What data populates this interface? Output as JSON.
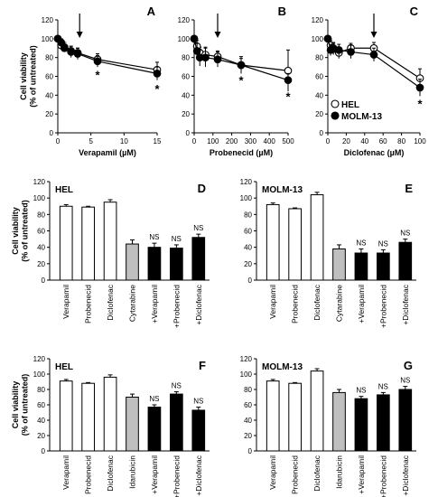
{
  "colors": {
    "ink": "#000000",
    "white": "#ffffff",
    "gray": "#bfbfbf",
    "black": "#000000"
  },
  "chart_data": [
    {
      "id": "A",
      "type": "line",
      "panel_label": "A",
      "xlabel": "Verapamil (µM)",
      "ylabel": [
        "Cell viability",
        "(% of untreated)"
      ],
      "xlim": [
        0,
        15
      ],
      "ylim": [
        0,
        120
      ],
      "xticks": [
        0,
        5,
        10,
        15
      ],
      "yticks": [
        0,
        20,
        40,
        60,
        80,
        100,
        120
      ],
      "arrow_x": 3.3,
      "series": [
        {
          "name": "HEL",
          "marker": "open",
          "x": [
            0,
            0.5,
            1,
            2,
            3,
            6,
            15
          ],
          "y": [
            100,
            93,
            90,
            87,
            85,
            78,
            67
          ],
          "err": [
            3,
            4,
            4,
            5,
            5,
            6,
            8
          ]
        },
        {
          "name": "MOLM-13",
          "marker": "filled",
          "x": [
            0,
            0.5,
            1,
            2,
            3,
            6,
            15
          ],
          "y": [
            100,
            96,
            91,
            86,
            84,
            76,
            63
          ],
          "err": [
            3,
            4,
            5,
            6,
            6,
            6,
            7
          ]
        }
      ],
      "stars": [
        {
          "x": 6,
          "y": 63,
          "text": "*"
        },
        {
          "x": 15,
          "y": 48,
          "text": "*"
        }
      ]
    },
    {
      "id": "B",
      "type": "line",
      "panel_label": "B",
      "xlabel": "Probenecid (µM)",
      "ylabel": [],
      "xlim": [
        0,
        500
      ],
      "ylim": [
        0,
        120
      ],
      "xticks": [
        0,
        100,
        200,
        300,
        400,
        500
      ],
      "yticks": [
        0,
        20,
        40,
        60,
        80,
        100,
        120
      ],
      "arrow_x": 125,
      "series": [
        {
          "name": "HEL",
          "marker": "open",
          "x": [
            0,
            15,
            30,
            60,
            125,
            250,
            500
          ],
          "y": [
            100,
            92,
            85,
            83,
            81,
            72,
            66
          ],
          "err": [
            3,
            6,
            6,
            8,
            6,
            7,
            22
          ]
        },
        {
          "name": "MOLM-13",
          "marker": "filled",
          "x": [
            0,
            15,
            30,
            60,
            125,
            250,
            500
          ],
          "y": [
            100,
            87,
            80,
            80,
            78,
            72,
            56
          ],
          "err": [
            3,
            8,
            9,
            10,
            8,
            9,
            7
          ]
        }
      ],
      "stars": [
        {
          "x": 250,
          "y": 57,
          "text": "*"
        },
        {
          "x": 500,
          "y": 40,
          "text": "*"
        }
      ]
    },
    {
      "id": "C",
      "type": "line",
      "panel_label": "C",
      "xlabel": "Diclofenac (µM)",
      "ylabel": [],
      "xlim": [
        0,
        100
      ],
      "ylim": [
        0,
        120
      ],
      "xticks": [
        0,
        20,
        40,
        60,
        80,
        100
      ],
      "yticks": [
        0,
        20,
        40,
        60,
        80,
        100,
        120
      ],
      "arrow_x": 50,
      "legend": {
        "position": "bottom-left",
        "entries": [
          "HEL",
          "MOLM-13"
        ]
      },
      "series": [
        {
          "name": "HEL",
          "marker": "open",
          "x": [
            0,
            3,
            6,
            12,
            25,
            50,
            100
          ],
          "y": [
            100,
            93,
            90,
            85,
            90,
            90,
            58
          ],
          "err": [
            3,
            5,
            6,
            6,
            5,
            6,
            10
          ]
        },
        {
          "name": "MOLM-13",
          "marker": "filled",
          "x": [
            0,
            3,
            6,
            12,
            25,
            50,
            100
          ],
          "y": [
            100,
            88,
            89,
            88,
            86,
            83,
            48
          ],
          "err": [
            3,
            6,
            6,
            6,
            7,
            7,
            9
          ]
        }
      ],
      "stars": [
        {
          "x": 100,
          "y": 32,
          "text": "*"
        }
      ]
    },
    {
      "id": "D",
      "type": "bar",
      "panel_label": "D",
      "title": "HEL",
      "ylabel": [
        "Cell viability",
        "(% of untreated)"
      ],
      "ylim": [
        0,
        120
      ],
      "yticks": [
        0,
        20,
        40,
        60,
        80,
        100,
        120
      ],
      "categories": [
        "Verapamil",
        "Probenecid",
        "Diclofenac",
        "Cytarabine",
        "+Verapamil",
        "+Probenecid",
        "+Diclofenac"
      ],
      "values": [
        90,
        89,
        95,
        44,
        40,
        39,
        52
      ],
      "errors": [
        2,
        1,
        3,
        5,
        5,
        4,
        4
      ],
      "fills": [
        "white",
        "white",
        "white",
        "gray",
        "black",
        "black",
        "black"
      ],
      "labels": [
        "",
        "",
        "",
        "",
        "NS",
        "NS",
        "NS"
      ]
    },
    {
      "id": "E",
      "type": "bar",
      "panel_label": "E",
      "title": "MOLM-13",
      "ylabel": [],
      "ylim": [
        0,
        120
      ],
      "yticks": [
        0,
        20,
        40,
        60,
        80,
        100,
        120
      ],
      "categories": [
        "Verapamil",
        "Probenecid",
        "Diclofenac",
        "Cytarabine",
        "+Verapamil",
        "+Probenecid",
        "+Diclofenac"
      ],
      "values": [
        92,
        87,
        104,
        38,
        33,
        33,
        46
      ],
      "errors": [
        2,
        1,
        3,
        5,
        5,
        4,
        4
      ],
      "fills": [
        "white",
        "white",
        "white",
        "gray",
        "black",
        "black",
        "black"
      ],
      "labels": [
        "",
        "",
        "",
        "",
        "NS",
        "NS",
        "NS"
      ]
    },
    {
      "id": "F",
      "type": "bar",
      "panel_label": "F",
      "title": "HEL",
      "ylabel": [
        "Cell viability",
        "(% of untreated)"
      ],
      "ylim": [
        0,
        120
      ],
      "yticks": [
        0,
        20,
        40,
        60,
        80,
        100,
        120
      ],
      "categories": [
        "Verapamil",
        "Probenecid",
        "Diclofenac",
        "Idarubicin",
        "+Verapamil",
        "+Probenecid",
        "+Diclofenac"
      ],
      "values": [
        91,
        88,
        96,
        70,
        57,
        74,
        53
      ],
      "errors": [
        2,
        1,
        3,
        4,
        3,
        3,
        4
      ],
      "fills": [
        "white",
        "white",
        "white",
        "gray",
        "black",
        "black",
        "black"
      ],
      "labels": [
        "",
        "",
        "",
        "",
        "NS",
        "NS",
        "NS"
      ]
    },
    {
      "id": "G",
      "type": "bar",
      "panel_label": "G",
      "title": "MOLM-13",
      "ylabel": [],
      "ylim": [
        0,
        120
      ],
      "yticks": [
        0,
        20,
        40,
        60,
        80,
        100,
        120
      ],
      "categories": [
        "Verapamil",
        "Probenecid",
        "Diclofenac",
        "Idarubicin",
        "+Verapamil",
        "+Probenecid",
        "+Diclofenac"
      ],
      "values": [
        91,
        88,
        104,
        76,
        68,
        73,
        80
      ],
      "errors": [
        2,
        1,
        3,
        4,
        3,
        3,
        4
      ],
      "fills": [
        "white",
        "white",
        "white",
        "gray",
        "black",
        "black",
        "black"
      ],
      "labels": [
        "",
        "",
        "",
        "",
        "NS",
        "NS",
        "NS"
      ]
    }
  ]
}
